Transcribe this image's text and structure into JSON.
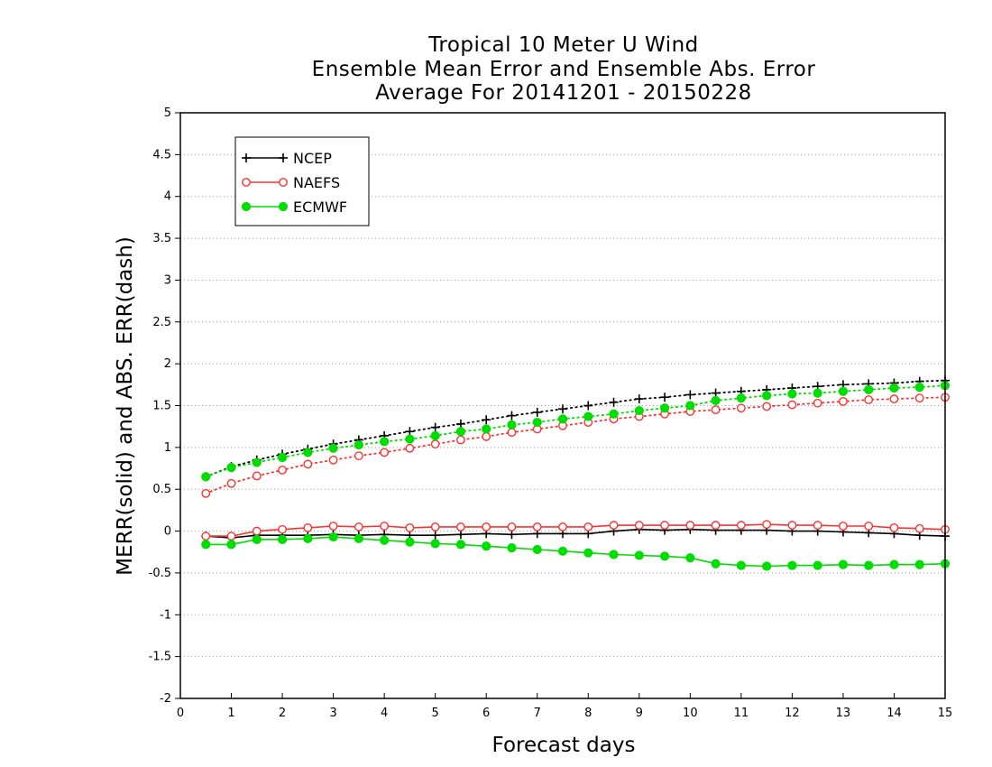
{
  "title_lines": [
    "Tropical 10 Meter U Wind",
    "Ensemble Mean Error and Ensemble Abs. Error",
    "Average For 20141201 - 20150228"
  ],
  "chart_data": {
    "type": "line",
    "xlabel": "Forecast days",
    "ylabel": "MERR(solid) and ABS. ERR(dash)",
    "xlim": [
      0,
      15
    ],
    "ylim": [
      -2,
      5
    ],
    "xticks": [
      "0",
      "1",
      "2",
      "3",
      "4",
      "5",
      "6",
      "7",
      "8",
      "9",
      "10",
      "11",
      "12",
      "13",
      "14",
      "15"
    ],
    "yticks": [
      "-2",
      "-1.5",
      "-1",
      "-0.5",
      "0",
      "0.5",
      "1",
      "1.5",
      "2",
      "2.5",
      "3",
      "3.5",
      "4",
      "4.5",
      "5"
    ],
    "grid": "horizontal dotted",
    "legend_position": "top-left",
    "x": [
      0.5,
      1,
      1.5,
      2,
      2.5,
      3,
      3.5,
      4,
      4.5,
      5,
      5.5,
      6,
      6.5,
      7,
      7.5,
      8,
      8.5,
      9,
      9.5,
      10,
      10.5,
      11,
      11.5,
      12,
      12.5,
      13,
      13.5,
      14,
      14.5,
      15
    ],
    "series": [
      {
        "name": "NCEP",
        "color": "#000000",
        "marker": "plus",
        "style": "solid",
        "metric": "MERR",
        "values": [
          -0.06,
          -0.08,
          -0.05,
          -0.05,
          -0.05,
          -0.04,
          -0.05,
          -0.04,
          -0.05,
          -0.05,
          -0.04,
          -0.03,
          -0.04,
          -0.03,
          -0.03,
          -0.03,
          0.0,
          0.02,
          0.01,
          0.02,
          0.01,
          0.01,
          0.01,
          0.0,
          0.0,
          -0.01,
          -0.02,
          -0.03,
          -0.05,
          -0.06
        ]
      },
      {
        "name": "NAEFS",
        "color": "#ff3030",
        "marker": "circle-open",
        "style": "solid",
        "metric": "MERR",
        "values": [
          -0.06,
          -0.06,
          0.0,
          0.02,
          0.04,
          0.06,
          0.05,
          0.06,
          0.04,
          0.05,
          0.05,
          0.05,
          0.05,
          0.05,
          0.05,
          0.05,
          0.07,
          0.07,
          0.07,
          0.07,
          0.07,
          0.07,
          0.08,
          0.07,
          0.07,
          0.06,
          0.06,
          0.04,
          0.03,
          0.02
        ]
      },
      {
        "name": "ECMWF",
        "color": "#00dd00",
        "marker": "circle-filled",
        "style": "solid",
        "metric": "MERR",
        "values": [
          -0.16,
          -0.16,
          -0.1,
          -0.1,
          -0.09,
          -0.07,
          -0.09,
          -0.11,
          -0.13,
          -0.15,
          -0.16,
          -0.18,
          -0.2,
          -0.22,
          -0.24,
          -0.26,
          -0.28,
          -0.29,
          -0.3,
          -0.32,
          -0.39,
          -0.41,
          -0.42,
          -0.41,
          -0.41,
          -0.4,
          -0.41,
          -0.4,
          -0.4,
          -0.39
        ]
      },
      {
        "name": "NCEP",
        "color": "#000000",
        "marker": "plus",
        "style": "dotted",
        "metric": "ABS ERR",
        "values": [
          0.65,
          0.77,
          0.85,
          0.92,
          0.98,
          1.04,
          1.09,
          1.14,
          1.19,
          1.24,
          1.28,
          1.33,
          1.38,
          1.42,
          1.46,
          1.5,
          1.54,
          1.58,
          1.6,
          1.63,
          1.65,
          1.67,
          1.69,
          1.71,
          1.73,
          1.75,
          1.76,
          1.77,
          1.79,
          1.8
        ]
      },
      {
        "name": "NAEFS",
        "color": "#ff3030",
        "marker": "circle-open",
        "style": "dotted",
        "metric": "ABS ERR",
        "values": [
          0.45,
          0.57,
          0.66,
          0.73,
          0.8,
          0.85,
          0.9,
          0.94,
          0.99,
          1.04,
          1.09,
          1.13,
          1.18,
          1.22,
          1.26,
          1.3,
          1.34,
          1.37,
          1.4,
          1.43,
          1.45,
          1.47,
          1.49,
          1.51,
          1.53,
          1.55,
          1.57,
          1.58,
          1.59,
          1.6
        ]
      },
      {
        "name": "ECMWF",
        "color": "#00dd00",
        "marker": "circle-filled",
        "style": "dotted",
        "metric": "ABS ERR",
        "values": [
          0.65,
          0.76,
          0.82,
          0.88,
          0.94,
          0.99,
          1.03,
          1.07,
          1.1,
          1.14,
          1.19,
          1.22,
          1.27,
          1.3,
          1.34,
          1.37,
          1.4,
          1.44,
          1.47,
          1.5,
          1.56,
          1.59,
          1.62,
          1.64,
          1.65,
          1.67,
          1.69,
          1.71,
          1.72,
          1.74
        ]
      }
    ],
    "legend": [
      {
        "label": "NCEP",
        "color": "#000000",
        "marker": "plus"
      },
      {
        "label": "NAEFS",
        "color": "#ff3030",
        "marker": "circle-open"
      },
      {
        "label": "ECMWF",
        "color": "#00dd00",
        "marker": "circle-filled"
      }
    ]
  }
}
